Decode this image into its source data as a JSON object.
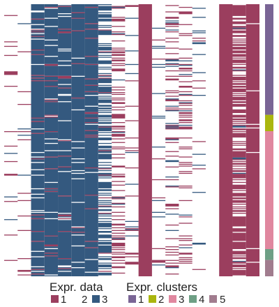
{
  "chart_data": {
    "type": "heatmap",
    "n_rows": 300,
    "n_cols": 19,
    "value_levels": [
      "1",
      "2",
      "3"
    ],
    "value_colors": {
      "1": "#9b3e5e",
      "2": "#ffffff",
      "3": "#34597f"
    },
    "column_profiles": [
      [
        0.07,
        0.92,
        0.01
      ],
      [
        0.05,
        0.94,
        0.01
      ],
      [
        0.04,
        0.05,
        0.91
      ],
      [
        0.05,
        0.04,
        0.91
      ],
      [
        0.06,
        0.06,
        0.88
      ],
      [
        0.03,
        0.06,
        0.91
      ],
      [
        0.05,
        0.04,
        0.91
      ],
      [
        0.06,
        0.38,
        0.56
      ],
      [
        0.3,
        0.68,
        0.02
      ],
      [
        0.06,
        0.92,
        0.02
      ],
      [
        1.0,
        0.0,
        0.0
      ],
      [
        0.03,
        0.93,
        0.04
      ],
      [
        0.15,
        0.79,
        0.06
      ],
      [
        0.21,
        0.75,
        0.04
      ],
      [
        0.03,
        0.92,
        0.05
      ],
      [
        0.0,
        1.0,
        0.0
      ],
      [
        1.0,
        0.0,
        0.0
      ],
      [
        0.62,
        0.36,
        0.02
      ],
      [
        0.99,
        0.01,
        0.0
      ]
    ],
    "row_clusters": [
      {
        "cluster": "1",
        "row_start": 0,
        "row_end": 122
      },
      {
        "cluster": "2",
        "row_start": 122,
        "row_end": 140
      },
      {
        "cluster": "3",
        "row_start": 140,
        "row_end": 270
      },
      {
        "cluster": "4",
        "row_start": 270,
        "row_end": 282
      },
      {
        "cluster": "5",
        "row_start": 282,
        "row_end": 300
      }
    ],
    "cluster_colors": {
      "1": "#7a6595",
      "2": "#aab60f",
      "3": "#e0879f",
      "4": "#6e9f85",
      "5": "#a17c8e"
    },
    "legends": [
      {
        "title": "Expr. data",
        "items": [
          {
            "label": "1",
            "color": "#9b3e5e"
          },
          {
            "label": "2",
            "color": "#ffffff"
          },
          {
            "label": "3",
            "color": "#34597f"
          }
        ]
      },
      {
        "title": "Expr. clusters",
        "items": [
          {
            "label": "1",
            "color": "#7a6595"
          },
          {
            "label": "2",
            "color": "#aab60f"
          },
          {
            "label": "3",
            "color": "#e0879f"
          },
          {
            "label": "4",
            "color": "#6e9f85"
          },
          {
            "label": "5",
            "color": "#a17c8e"
          }
        ]
      }
    ],
    "legend_placement": "bottom"
  }
}
